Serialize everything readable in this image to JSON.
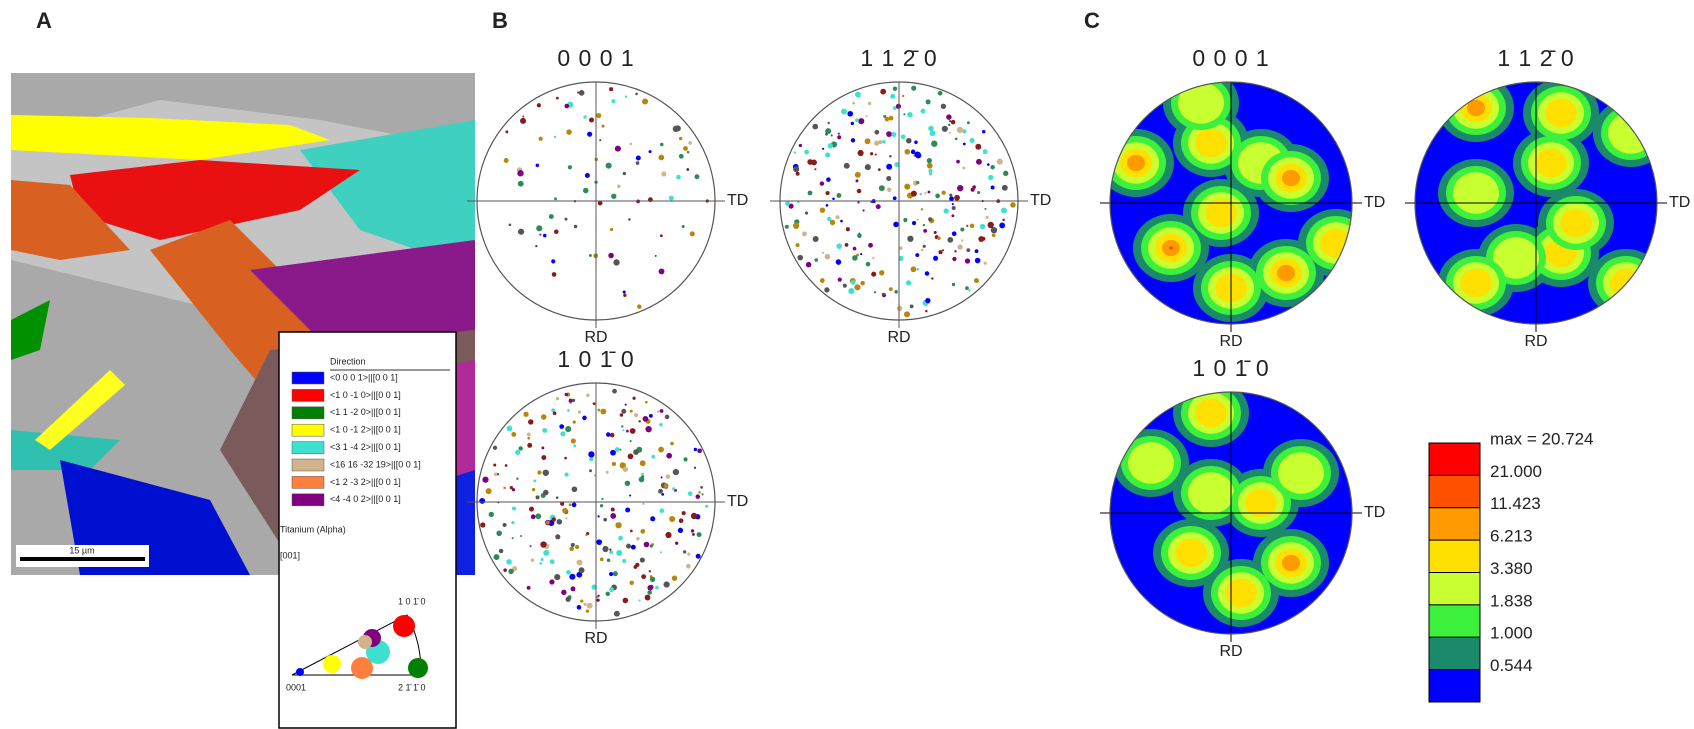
{
  "panel_a": {
    "label": "A",
    "scale_bar": "15 µm",
    "legend": {
      "title": "Direction",
      "entries": [
        {
          "label": "<0 0 0 1>||[0 0 1]",
          "color": "#0000ff"
        },
        {
          "label": "<1 0 -1 0>||[0 0 1]",
          "color": "#ff0000"
        },
        {
          "label": "<1 1 -2 0>||[0 0 1]",
          "color": "#008000"
        },
        {
          "label": "<1 0 -1 2>||[0 0 1]",
          "color": "#ffff00"
        },
        {
          "label": "<3 1 -4 2>||[0 0 1]",
          "color": "#40e0d0"
        },
        {
          "label": "<16 16 -32 19>||[0 0 1]",
          "color": "#d2b48c"
        },
        {
          "label": "<1 2 -3 2>||[0 0 1]",
          "color": "#ff7f3f"
        },
        {
          "label": "<4 -4 0 2>||[0 0 1]",
          "color": "#800080"
        }
      ],
      "phase": "Titanium (Alpha)",
      "reference": "[001]",
      "ipf_corners": [
        "0001",
        "2 1̄ 1̄ 0",
        "1 0 1̄ 0"
      ]
    }
  },
  "panel_b": {
    "label": "B",
    "figures": [
      {
        "title": "0 0 0 1",
        "td": "TD",
        "rd": "RD"
      },
      {
        "title": "1 1 2̄ 0",
        "td": "TD",
        "rd": "RD"
      },
      {
        "title": "1 0 1̄ 0",
        "td": "TD",
        "rd": "RD"
      }
    ]
  },
  "panel_c": {
    "label": "C",
    "figures": [
      {
        "title": "0 0 0 1",
        "td": "TD",
        "rd": "RD"
      },
      {
        "title": "1 1 2̄ 0",
        "td": "TD",
        "rd": "RD"
      },
      {
        "title": "1 0 1̄ 0",
        "td": "TD",
        "rd": "RD"
      }
    ],
    "scale": [
      {
        "label": "max = 20.724",
        "color": "#ff0000"
      },
      {
        "label": "21.000",
        "color": "#ff5000"
      },
      {
        "label": "11.423",
        "color": "#ff9a00"
      },
      {
        "label": "6.213",
        "color": "#ffe000"
      },
      {
        "label": "3.380",
        "color": "#c8ff30"
      },
      {
        "label": "1.838",
        "color": "#3cf03c"
      },
      {
        "label": "1.000",
        "color": "#1a8a6a"
      },
      {
        "label": "0.544",
        "color": "#0000ff"
      }
    ]
  }
}
